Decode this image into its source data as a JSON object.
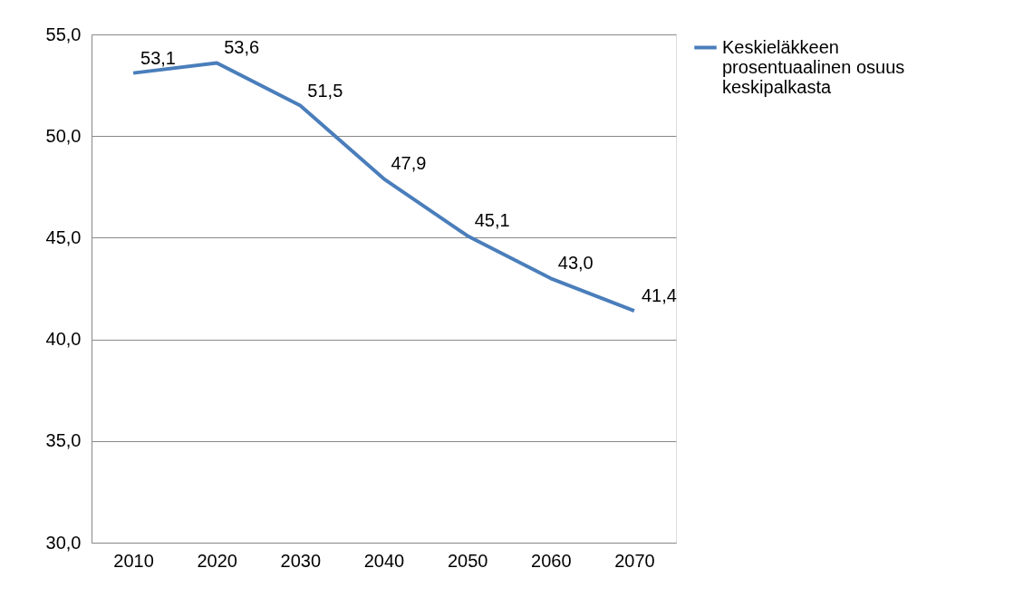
{
  "chart_data": {
    "type": "line",
    "categories": [
      "2010",
      "2020",
      "2030",
      "2040",
      "2050",
      "2060",
      "2070"
    ],
    "series": [
      {
        "name": "Keskieläkkeen prosentuaalinen osuus keskipalkasta",
        "color": "#4a7ebb",
        "values": [
          53.1,
          53.6,
          51.5,
          47.9,
          45.1,
          43.0,
          41.4
        ],
        "value_labels": [
          "53,1",
          "53,6",
          "51,5",
          "47,9",
          "45,1",
          "43,0",
          "41,4"
        ]
      }
    ],
    "ylim": [
      30,
      55
    ],
    "yticks": [
      {
        "value": 30,
        "label": "30,0"
      },
      {
        "value": 35,
        "label": "35,0"
      },
      {
        "value": 40,
        "label": "40,0"
      },
      {
        "value": 45,
        "label": "45,0"
      },
      {
        "value": 50,
        "label": "50,0"
      },
      {
        "value": 55,
        "label": "55,0"
      }
    ],
    "grid": "y",
    "legend": "right",
    "marker": "none",
    "line_style": "solid"
  }
}
